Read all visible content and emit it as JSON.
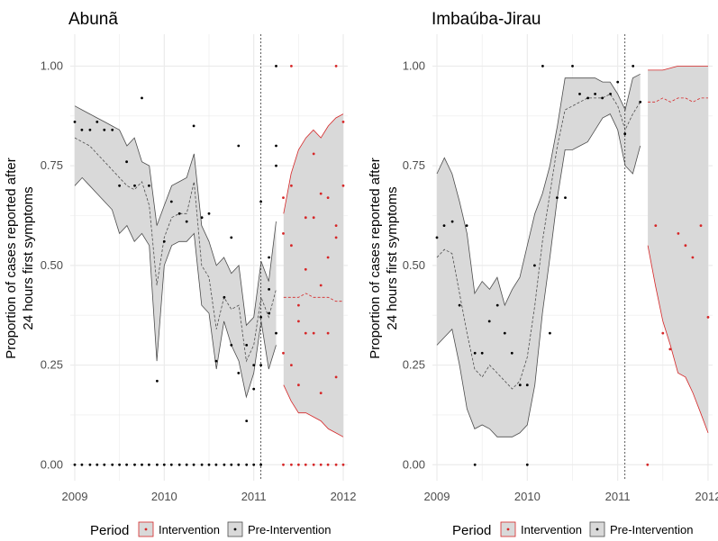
{
  "figure": {
    "legend_title": "Period",
    "legend_items": [
      {
        "label": "Intervention",
        "color": "#d62728"
      },
      {
        "label": "Pre-Intervention",
        "color": "#000000"
      }
    ],
    "ylabel_lines": [
      "Proportion of cases reported after",
      "24 hours first symptoms"
    ]
  },
  "colors": {
    "grid": "#ebebeb",
    "ribbon_fill": "#d9d9d9",
    "ribbon_edge": "#4d4d4d",
    "pre": "#000000",
    "intervention": "#d62728",
    "axis_text": "#4d4d4d"
  },
  "chart_data": [
    {
      "type": "scatter",
      "title": "Abunã",
      "xlabel": "",
      "ylabel": "Proportion of cases reported after 24 hours first symptoms",
      "xlim": [
        2008.95,
        2012.05
      ],
      "ylim": [
        -0.04,
        1.08
      ],
      "x_ticks": [
        2009,
        2010,
        2011,
        2012
      ],
      "x_tick_labels": [
        "2009",
        "2010",
        "2011",
        "2012"
      ],
      "y_ticks": [
        0,
        0.25,
        0.5,
        0.75,
        1.0
      ],
      "y_tick_labels": [
        "0.00",
        "0.25",
        "0.50",
        "0.75",
        "1.00"
      ],
      "vline": 2011.08,
      "ribbons": [
        {
          "period": "Pre-Intervention",
          "x": [
            2009.0,
            2009.083,
            2009.167,
            2009.25,
            2009.333,
            2009.417,
            2009.5,
            2009.583,
            2009.667,
            2009.75,
            2009.833,
            2009.917,
            2010.0,
            2010.083,
            2010.167,
            2010.25,
            2010.333,
            2010.417,
            2010.5,
            2010.583,
            2010.667,
            2010.75,
            2010.833,
            2010.917,
            2011.0,
            2011.083,
            2011.167,
            2011.25
          ],
          "upper": [
            0.9,
            0.89,
            0.88,
            0.87,
            0.86,
            0.85,
            0.84,
            0.8,
            0.82,
            0.76,
            0.75,
            0.6,
            0.65,
            0.7,
            0.71,
            0.72,
            0.78,
            0.6,
            0.56,
            0.5,
            0.52,
            0.48,
            0.5,
            0.35,
            0.37,
            0.51,
            0.46,
            0.61
          ],
          "lower": [
            0.7,
            0.72,
            0.7,
            0.68,
            0.66,
            0.64,
            0.58,
            0.6,
            0.56,
            0.58,
            0.55,
            0.26,
            0.5,
            0.55,
            0.56,
            0.56,
            0.58,
            0.4,
            0.38,
            0.24,
            0.36,
            0.3,
            0.26,
            0.17,
            0.23,
            0.36,
            0.24,
            0.3
          ],
          "mean": [
            0.82,
            0.81,
            0.8,
            0.78,
            0.76,
            0.74,
            0.72,
            0.7,
            0.69,
            0.71,
            0.65,
            0.45,
            0.57,
            0.62,
            0.63,
            0.63,
            0.71,
            0.5,
            0.47,
            0.34,
            0.42,
            0.39,
            0.4,
            0.26,
            0.3,
            0.42,
            0.37,
            0.44
          ]
        },
        {
          "period": "Intervention",
          "x": [
            2011.333,
            2011.417,
            2011.5,
            2011.583,
            2011.667,
            2011.75,
            2011.833,
            2011.917,
            2012.0
          ],
          "upper": [
            0.63,
            0.73,
            0.79,
            0.82,
            0.84,
            0.82,
            0.85,
            0.87,
            0.88
          ],
          "lower": [
            0.2,
            0.16,
            0.13,
            0.13,
            0.12,
            0.11,
            0.09,
            0.08,
            0.07
          ],
          "mean": [
            0.42,
            0.42,
            0.42,
            0.43,
            0.42,
            0.42,
            0.42,
            0.41,
            0.41
          ]
        }
      ],
      "series": [
        {
          "name": "Pre-Intervention",
          "x": [
            2009.0,
            2009.08,
            2009.17,
            2009.25,
            2009.33,
            2009.42,
            2009.5,
            2009.58,
            2009.67,
            2009.75,
            2009.83,
            2009.92,
            2010.0,
            2010.08,
            2010.17,
            2010.25,
            2010.33,
            2010.42,
            2010.5,
            2010.58,
            2010.67,
            2010.75,
            2010.83,
            2010.92,
            2011.0,
            2011.08,
            2011.17,
            2011.25,
            2011.17,
            2011.25,
            2011.08,
            2011.25,
            2011.25,
            2011.17,
            2011.0,
            2010.92,
            2010.83,
            2010.75,
            2011.08,
            2009.0,
            2009.08,
            2009.17,
            2009.25,
            2009.33,
            2009.42,
            2009.5,
            2009.58,
            2009.67,
            2009.75,
            2009.83,
            2009.92,
            2010.0,
            2010.08,
            2010.17,
            2010.25,
            2010.33,
            2010.42,
            2010.5,
            2010.58,
            2010.67,
            2010.75,
            2010.83,
            2010.92,
            2011.0,
            2011.08
          ],
          "y": [
            0.86,
            0.84,
            0.84,
            0.86,
            0.84,
            0.84,
            0.7,
            0.76,
            0.7,
            0.92,
            0.7,
            0.21,
            0.56,
            0.66,
            0.63,
            0.61,
            0.85,
            0.62,
            0.63,
            0.26,
            0.42,
            0.57,
            0.23,
            0.11,
            0.19,
            0.66,
            0.52,
            0.33,
            0.44,
            1.0,
            0.25,
            0.8,
            0.75,
            0.38,
            0.25,
            0.3,
            0.8,
            0.3,
            0.37,
            0,
            0,
            0,
            0,
            0,
            0,
            0,
            0,
            0,
            0,
            0,
            0,
            0,
            0,
            0,
            0,
            0,
            0,
            0,
            0,
            0,
            0,
            0,
            0,
            0,
            0
          ]
        },
        {
          "name": "Intervention",
          "x": [
            2011.33,
            2011.33,
            2011.33,
            2011.42,
            2011.42,
            2011.42,
            2011.5,
            2011.5,
            2011.5,
            2011.58,
            2011.58,
            2011.58,
            2011.67,
            2011.67,
            2011.67,
            2011.75,
            2011.75,
            2011.75,
            2011.83,
            2011.83,
            2011.83,
            2011.92,
            2011.92,
            2011.92,
            2012.0,
            2012.0,
            2011.42,
            2011.92,
            2011.33,
            2011.42,
            2011.5,
            2011.58,
            2011.67,
            2011.75,
            2011.83,
            2011.92,
            2012.0
          ],
          "y": [
            0.67,
            0.58,
            0.28,
            0.7,
            0.55,
            0.25,
            0.4,
            0.36,
            0.2,
            0.62,
            0.49,
            0.33,
            0.78,
            0.62,
            0.33,
            0.68,
            0.45,
            0.18,
            0.67,
            0.52,
            0.33,
            0.6,
            0.57,
            0.22,
            0.86,
            0.7,
            1.0,
            1.0,
            0,
            0,
            0,
            0,
            0,
            0,
            0,
            0,
            0
          ]
        }
      ]
    },
    {
      "type": "scatter",
      "title": "Imbaúba-Jirau",
      "xlabel": "",
      "ylabel": "Proportion of cases reported after 24 hours first symptoms",
      "xlim": [
        2008.95,
        2012.05
      ],
      "ylim": [
        -0.04,
        1.08
      ],
      "x_ticks": [
        2009,
        2010,
        2011,
        2012
      ],
      "x_tick_labels": [
        "2009",
        "2010",
        "2011",
        "2012"
      ],
      "y_ticks": [
        0,
        0.25,
        0.5,
        0.75,
        1.0
      ],
      "y_tick_labels": [
        "0.00",
        "0.25",
        "0.50",
        "0.75",
        "1.00"
      ],
      "vline": 2011.08,
      "ribbons": [
        {
          "period": "Pre-Intervention",
          "x": [
            2009.0,
            2009.083,
            2009.167,
            2009.25,
            2009.333,
            2009.417,
            2009.5,
            2009.583,
            2009.667,
            2009.75,
            2009.833,
            2009.917,
            2010.0,
            2010.083,
            2010.167,
            2010.25,
            2010.333,
            2010.417,
            2010.5,
            2010.583,
            2010.667,
            2010.75,
            2010.833,
            2010.917,
            2011.0,
            2011.083,
            2011.167,
            2011.25
          ],
          "upper": [
            0.73,
            0.77,
            0.73,
            0.66,
            0.58,
            0.43,
            0.46,
            0.44,
            0.47,
            0.4,
            0.44,
            0.47,
            0.55,
            0.63,
            0.68,
            0.75,
            0.85,
            0.97,
            0.97,
            0.97,
            0.97,
            0.97,
            0.96,
            0.96,
            0.93,
            0.89,
            0.97,
            0.98
          ],
          "lower": [
            0.3,
            0.32,
            0.34,
            0.25,
            0.14,
            0.09,
            0.1,
            0.09,
            0.07,
            0.07,
            0.07,
            0.08,
            0.1,
            0.2,
            0.38,
            0.52,
            0.67,
            0.79,
            0.79,
            0.8,
            0.81,
            0.84,
            0.87,
            0.88,
            0.84,
            0.75,
            0.73,
            0.8
          ],
          "mean": [
            0.52,
            0.54,
            0.53,
            0.43,
            0.33,
            0.24,
            0.22,
            0.25,
            0.23,
            0.21,
            0.19,
            0.21,
            0.27,
            0.4,
            0.56,
            0.68,
            0.8,
            0.89,
            0.9,
            0.91,
            0.92,
            0.92,
            0.92,
            0.93,
            0.9,
            0.84,
            0.88,
            0.91
          ]
        },
        {
          "period": "Intervention",
          "x": [
            2011.333,
            2011.417,
            2011.5,
            2011.583,
            2011.667,
            2011.75,
            2011.833,
            2011.917,
            2012.0
          ],
          "upper": [
            0.99,
            0.99,
            0.99,
            0.995,
            1.0,
            1.0,
            1.0,
            1.0,
            1.0
          ],
          "lower": [
            0.55,
            0.45,
            0.36,
            0.3,
            0.23,
            0.22,
            0.18,
            0.13,
            0.08
          ],
          "mean": [
            0.91,
            0.91,
            0.92,
            0.91,
            0.92,
            0.92,
            0.91,
            0.92,
            0.92
          ]
        }
      ],
      "series": [
        {
          "name": "Pre-Intervention",
          "x": [
            2009.0,
            2009.08,
            2009.17,
            2009.25,
            2009.33,
            2009.42,
            2009.5,
            2009.58,
            2009.67,
            2009.75,
            2009.83,
            2009.92,
            2010.0,
            2010.08,
            2010.17,
            2010.25,
            2010.33,
            2010.42,
            2010.5,
            2010.58,
            2010.67,
            2010.75,
            2010.83,
            2010.92,
            2011.0,
            2011.08,
            2011.17,
            2011.25,
            2009.42,
            2010.0
          ],
          "y": [
            0.57,
            0.6,
            0.61,
            0.4,
            0.6,
            0.28,
            0.28,
            0.36,
            0.4,
            0.33,
            0.28,
            0.2,
            0.2,
            0.5,
            1.0,
            0.33,
            0.67,
            0.67,
            1.0,
            0.93,
            0.92,
            0.93,
            0.92,
            0.93,
            0.96,
            0.83,
            1.0,
            0.91,
            0,
            0
          ]
        },
        {
          "name": "Intervention",
          "x": [
            2011.33,
            2011.42,
            2011.5,
            2011.58,
            2011.67,
            2011.75,
            2011.83,
            2011.92,
            2012.0
          ],
          "y": [
            0,
            0.6,
            0.33,
            0.29,
            0.58,
            0.55,
            0.52,
            0.6,
            0.37
          ]
        }
      ]
    }
  ]
}
